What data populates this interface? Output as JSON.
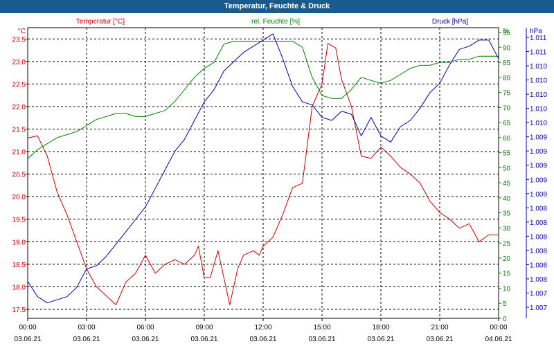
{
  "window": {
    "title": "Temperatur, Feuchte & Druck"
  },
  "chart_data": {
    "type": "line",
    "title": "Temperatur, Feuchte & Druck",
    "grid": true,
    "x": {
      "tick_times": [
        "00:00",
        "03:00",
        "06:00",
        "09:00",
        "12:00",
        "15:00",
        "18:00",
        "21:00",
        "00:00"
      ],
      "tick_dates": [
        "03.06.21",
        "03.06.21",
        "03.06.21",
        "03.06.21",
        "03.06.21",
        "03.06.21",
        "03.06.21",
        "03.06.21",
        "04.06.21"
      ],
      "range_hours": [
        0,
        24
      ]
    },
    "axes": {
      "temperature": {
        "label": "Temperatur [°C]",
        "unit": "°C",
        "color": "#c00000",
        "range": [
          17.3,
          23.75
        ],
        "ticks": [
          "17.5",
          "18.0",
          "18.5",
          "19.0",
          "19.5",
          "20.0",
          "20.5",
          "21.0",
          "21.5",
          "22.0",
          "22.5",
          "23.0",
          "23.5"
        ]
      },
      "humidity": {
        "label": "rel. Feuchte [%]",
        "unit": "%",
        "color": "#008000",
        "range": [
          0,
          96.5
        ],
        "ticks": [
          "0",
          "5",
          "10",
          "15",
          "20",
          "25",
          "30",
          "35",
          "40",
          "45",
          "50",
          "55",
          "60",
          "65",
          "70",
          "75",
          "80",
          "85",
          "90",
          "95"
        ]
      },
      "pressure": {
        "label": "Druck [hPa]",
        "unit": "hPa",
        "color": "#0000a0",
        "range": [
          1006.6,
          1011.3
        ],
        "ticks": [
          "1.007",
          "1.007",
          "1.008",
          "1.008",
          "1.008",
          "1.008",
          "1.008",
          "1.008",
          "1.009",
          "1.009",
          "1.009",
          "1.009",
          "1.009",
          "1.010",
          "1.010",
          "1.010",
          "1.010",
          "1.010",
          "1.011",
          "1.011"
        ]
      }
    },
    "series": [
      {
        "name": "Temperatur [°C]",
        "axis": "temperature",
        "x": [
          0,
          0.5,
          1,
          1.5,
          2,
          2.5,
          3,
          3.5,
          4,
          4.5,
          5,
          5.5,
          6,
          6.5,
          7,
          7.5,
          8,
          8.5,
          8.7,
          9,
          9.3,
          9.7,
          10.3,
          10.7,
          11,
          11.5,
          11.8,
          12,
          12.5,
          13,
          13.5,
          14,
          14.5,
          15,
          15.3,
          15.7,
          16,
          16.5,
          17,
          17.5,
          18,
          18.5,
          19,
          19.5,
          20,
          20.5,
          21,
          21.5,
          22,
          22.5,
          23,
          23.5,
          24
        ],
        "y": [
          21.3,
          21.35,
          20.9,
          20.1,
          19.6,
          19.0,
          18.4,
          18.0,
          17.8,
          17.6,
          18.1,
          18.3,
          18.7,
          18.3,
          18.5,
          18.6,
          18.5,
          18.7,
          18.9,
          18.2,
          18.2,
          18.8,
          17.6,
          18.4,
          18.7,
          18.8,
          18.7,
          18.9,
          19.1,
          19.6,
          20.2,
          20.3,
          22.0,
          22.5,
          23.4,
          23.3,
          22.6,
          22.0,
          20.9,
          20.85,
          21.1,
          20.9,
          20.65,
          20.5,
          20.3,
          19.9,
          19.65,
          19.5,
          19.3,
          19.4,
          19.0,
          19.15,
          19.15
        ]
      },
      {
        "name": "rel. Feuchte [%]",
        "axis": "humidity",
        "x": [
          0,
          0.5,
          1,
          1.5,
          2,
          2.5,
          3,
          3.5,
          4,
          4.5,
          5,
          5.5,
          6,
          6.5,
          7,
          7.5,
          8,
          8.5,
          9,
          9.5,
          10,
          10.5,
          11,
          11.5,
          12,
          12.5,
          13,
          13.5,
          14,
          14.5,
          15,
          15.5,
          16,
          16.5,
          17,
          17.5,
          18,
          18.5,
          19,
          19.5,
          20,
          20.5,
          21,
          21.5,
          22,
          22.5,
          23,
          23.5,
          24
        ],
        "y": [
          53,
          56,
          58,
          60,
          61,
          62,
          64,
          66,
          67,
          68,
          68,
          67,
          67,
          68,
          69,
          72,
          76,
          80,
          83,
          85,
          91,
          92,
          92,
          92,
          92,
          92,
          92,
          92,
          90,
          80,
          74,
          73,
          73,
          76,
          80,
          79,
          78,
          79,
          81,
          83,
          84,
          84,
          85,
          85,
          86,
          86,
          87,
          87,
          87
        ]
      },
      {
        "name": "Druck [hPa]",
        "axis": "pressure",
        "x": [
          0,
          0.5,
          1,
          1.5,
          2,
          2.5,
          3,
          3.5,
          4,
          4.5,
          5,
          5.5,
          6,
          6.5,
          7,
          7.5,
          8,
          8.5,
          9,
          9.5,
          10,
          10.5,
          11,
          11.5,
          12,
          12.5,
          13,
          13.5,
          14,
          14.5,
          15,
          15.5,
          16,
          16.5,
          17,
          17.5,
          18,
          18.5,
          19,
          19.5,
          20,
          20.5,
          21,
          21.5,
          22,
          22.5,
          23,
          23.5,
          24
        ],
        "y": [
          1007.2,
          1006.95,
          1006.85,
          1006.9,
          1006.95,
          1007.1,
          1007.4,
          1007.45,
          1007.6,
          1007.8,
          1008.0,
          1008.2,
          1008.4,
          1008.7,
          1009.0,
          1009.3,
          1009.5,
          1009.8,
          1010.1,
          1010.3,
          1010.6,
          1010.75,
          1010.9,
          1011.0,
          1011.1,
          1011.2,
          1010.8,
          1010.35,
          1010.1,
          1010.05,
          1009.85,
          1009.8,
          1009.95,
          1009.9,
          1009.55,
          1009.85,
          1009.55,
          1009.45,
          1009.7,
          1009.8,
          1010.0,
          1010.25,
          1010.4,
          1010.7,
          1010.95,
          1011.0,
          1011.1,
          1011.1,
          1010.8
        ]
      }
    ]
  }
}
